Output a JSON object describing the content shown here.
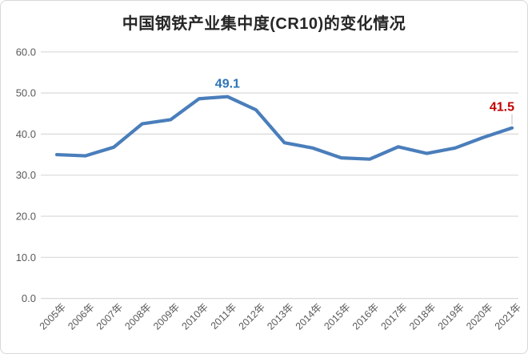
{
  "title": "中国钢铁产业集中度(CR10)的变化情况",
  "chart_data": {
    "type": "line",
    "title": "中国钢铁产业集中度(CR10)的变化情况",
    "categories": [
      "2005年",
      "2006年",
      "2007年",
      "2008年",
      "2009年",
      "2010年",
      "2011年",
      "2012年",
      "2013年",
      "2014年",
      "2015年",
      "2016年",
      "2017年",
      "2018年",
      "2019年",
      "2020年",
      "2021年"
    ],
    "values": [
      35.0,
      34.7,
      36.8,
      42.5,
      43.5,
      48.6,
      49.1,
      45.9,
      37.9,
      36.6,
      34.2,
      33.9,
      36.9,
      35.3,
      36.6,
      39.2,
      41.5
    ],
    "xlabel": "",
    "ylabel": "",
    "ylim": [
      0,
      60
    ],
    "ytick_step": 10,
    "ytick_decimals": 1,
    "grid": "horizontal",
    "legend": "none",
    "line_color": "#4a7ebb",
    "grid_color": "#d9d9d9",
    "axis_label_color": "#595959",
    "leader_line_color": "#bfbfbf",
    "annotations": [
      {
        "index": 6,
        "text": "49.1",
        "color": "#2e75b6",
        "leader": false
      },
      {
        "index": 16,
        "text": "41.5",
        "color": "#c00000",
        "leader": true
      }
    ]
  }
}
